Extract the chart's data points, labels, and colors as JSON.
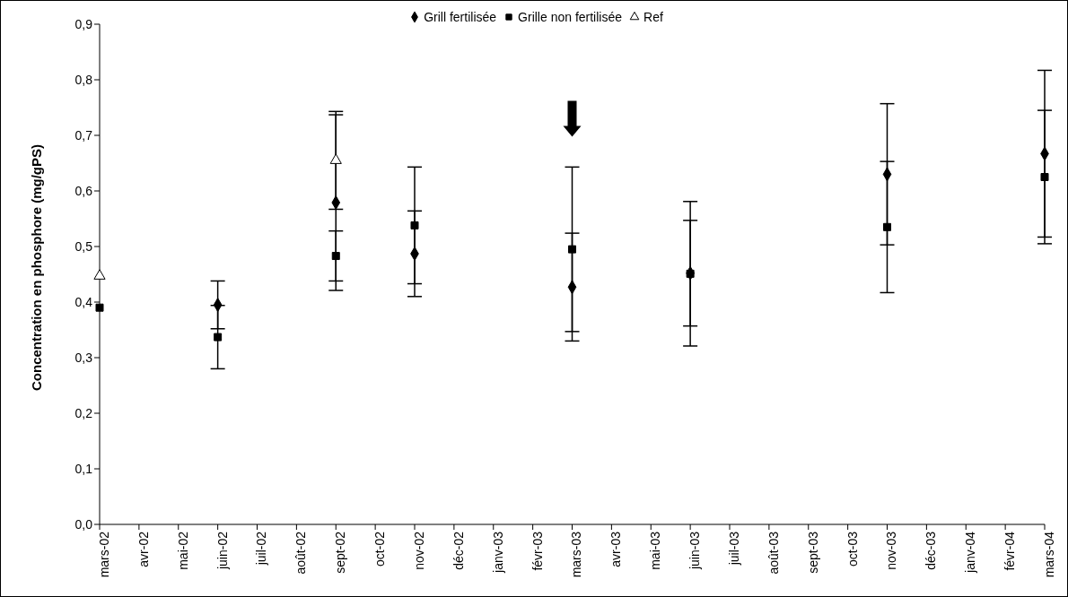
{
  "chart_data": {
    "type": "scatter",
    "ylabel": "Concentration en phosphore (mg/gPS)",
    "categories": [
      "mars-02",
      "avr-02",
      "mai-02",
      "juin-02",
      "juil-02",
      "août-02",
      "sept-02",
      "oct-02",
      "nov-02",
      "déc-02",
      "janv-03",
      "févr-03",
      "mars-03",
      "avr-03",
      "mai-03",
      "juin-03",
      "juil-03",
      "août-03",
      "sept-03",
      "oct-03",
      "nov-03",
      "déc-03",
      "janv-04",
      "févr-04",
      "mars-04"
    ],
    "series": [
      {
        "name": "Grill fertilisée",
        "color": "#000000",
        "marker": "diamond",
        "values": [
          null,
          null,
          null,
          0.395,
          null,
          null,
          0.579,
          null,
          0.487,
          null,
          null,
          null,
          0.427,
          null,
          null,
          0.452,
          null,
          null,
          null,
          null,
          0.63,
          null,
          null,
          null,
          0.667
        ],
        "errors": [
          null,
          null,
          null,
          0.043,
          null,
          null,
          0.158,
          null,
          0.077,
          null,
          null,
          null,
          0.097,
          null,
          null,
          0.095,
          null,
          null,
          null,
          null,
          0.127,
          null,
          null,
          null,
          0.15
        ]
      },
      {
        "name": "Grille non fertilisée",
        "color": "#000000",
        "marker": "square",
        "values": [
          0.39,
          null,
          null,
          0.337,
          null,
          null,
          0.483,
          null,
          0.538,
          null,
          null,
          null,
          0.495,
          null,
          null,
          0.451,
          null,
          null,
          null,
          null,
          0.535,
          null,
          null,
          null,
          0.625
        ],
        "errors": [
          null,
          null,
          null,
          0.057,
          null,
          null,
          0.045,
          null,
          0.105,
          null,
          null,
          null,
          0.148,
          null,
          null,
          0.13,
          null,
          null,
          null,
          null,
          0.118,
          null,
          null,
          null,
          0.12
        ]
      },
      {
        "name": "Ref",
        "color": "#ffffff",
        "marker": "triangle",
        "values": [
          0.447,
          null,
          null,
          null,
          null,
          null,
          0.655,
          null,
          null,
          null,
          null,
          null,
          null,
          null,
          null,
          null,
          null,
          null,
          null,
          null,
          null,
          null,
          null,
          null,
          null
        ],
        "errors": [
          null,
          null,
          null,
          null,
          null,
          null,
          0.088,
          null,
          null,
          null,
          null,
          null,
          null,
          null,
          null,
          null,
          null,
          null,
          null,
          null,
          null,
          null,
          null,
          null,
          null
        ]
      }
    ],
    "ylim": [
      0,
      0.9
    ],
    "yticks": [
      {
        "value": 0,
        "label": "0,0"
      },
      {
        "value": 0.1,
        "label": "0,1"
      },
      {
        "value": 0.2,
        "label": "0,2"
      },
      {
        "value": 0.3,
        "label": "0,3"
      },
      {
        "value": 0.4,
        "label": "0,4"
      },
      {
        "value": 0.5,
        "label": "0,5"
      },
      {
        "value": 0.6,
        "label": "0,6"
      },
      {
        "value": 0.7,
        "label": "0,7"
      },
      {
        "value": 0.8,
        "label": "0,8"
      },
      {
        "value": 0.9,
        "label": "0,9"
      }
    ],
    "grid": false,
    "legend": "top"
  }
}
